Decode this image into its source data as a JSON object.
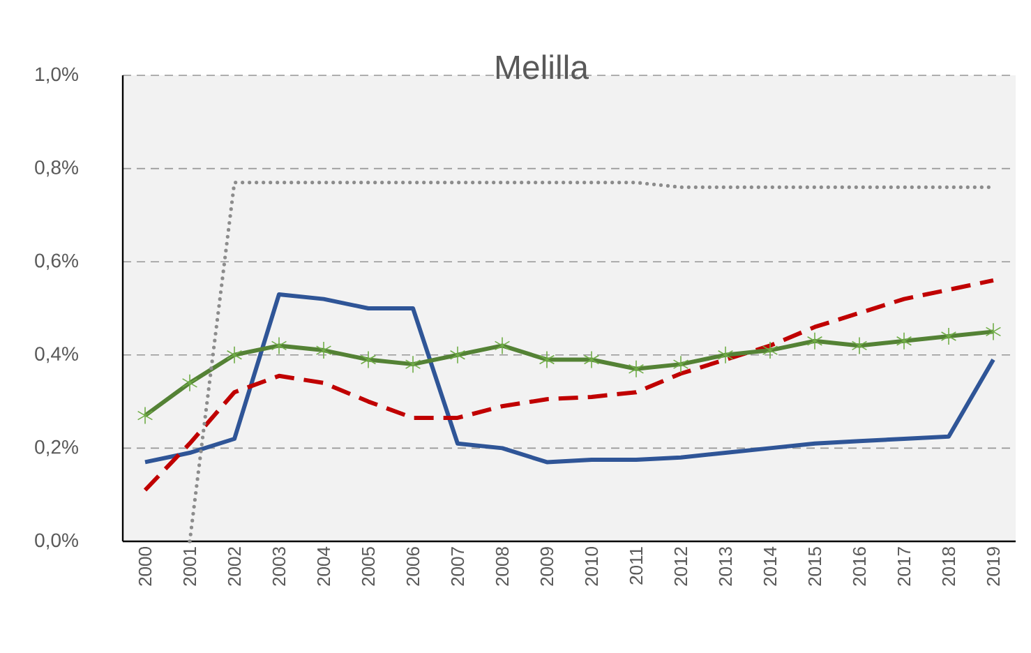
{
  "chart_data": {
    "type": "line",
    "title": "Melilla",
    "categories": [
      "2000",
      "2001",
      "2002",
      "2003",
      "2004",
      "2005",
      "2006",
      "2007",
      "2008",
      "2009",
      "2010",
      "2011",
      "2012",
      "2013",
      "2014",
      "2015",
      "2016",
      "2017",
      "2018",
      "2019"
    ],
    "series": [
      {
        "color": "#2f5597",
        "line_style": "solid",
        "marker": "none",
        "values": [
          0.17,
          0.19,
          0.22,
          0.53,
          0.52,
          0.5,
          0.5,
          0.21,
          0.2,
          0.17,
          0.175,
          0.175,
          0.18,
          0.19,
          0.2,
          0.21,
          0.215,
          0.22,
          0.225,
          0.39
        ]
      },
      {
        "color": "#c00000",
        "line_style": "dashed",
        "marker": "none",
        "values": [
          0.11,
          0.21,
          0.32,
          0.355,
          0.34,
          0.3,
          0.265,
          0.265,
          0.29,
          0.305,
          0.31,
          0.32,
          0.36,
          0.39,
          0.42,
          0.46,
          0.49,
          0.52,
          0.54,
          0.56
        ]
      },
      {
        "color": "#548235",
        "line_style": "solid",
        "marker": "cross",
        "values": [
          0.27,
          0.34,
          0.4,
          0.42,
          0.41,
          0.39,
          0.38,
          0.4,
          0.42,
          0.39,
          0.39,
          0.37,
          0.38,
          0.4,
          0.41,
          0.43,
          0.42,
          0.43,
          0.44,
          0.45
        ]
      },
      {
        "color": "#8c8c8c",
        "line_style": "dotted",
        "marker": "none",
        "values": [
          null,
          0.0,
          0.77,
          0.77,
          0.77,
          0.77,
          0.77,
          0.77,
          0.77,
          0.77,
          0.77,
          0.77,
          0.76,
          0.76,
          0.76,
          0.76,
          0.76,
          0.76,
          0.76,
          0.76
        ]
      }
    ],
    "ylim": [
      0,
      1.0
    ],
    "yticks": [
      {
        "value": 0,
        "label": "0,0%"
      },
      {
        "value": 0.2,
        "label": "0,2%"
      },
      {
        "value": 0.4,
        "label": "0,4%"
      },
      {
        "value": 0.6,
        "label": "0,6%"
      },
      {
        "value": 0.8,
        "label": "0,8%"
      },
      {
        "value": 1.0,
        "label": "1,0%"
      }
    ],
    "grid": "y"
  }
}
